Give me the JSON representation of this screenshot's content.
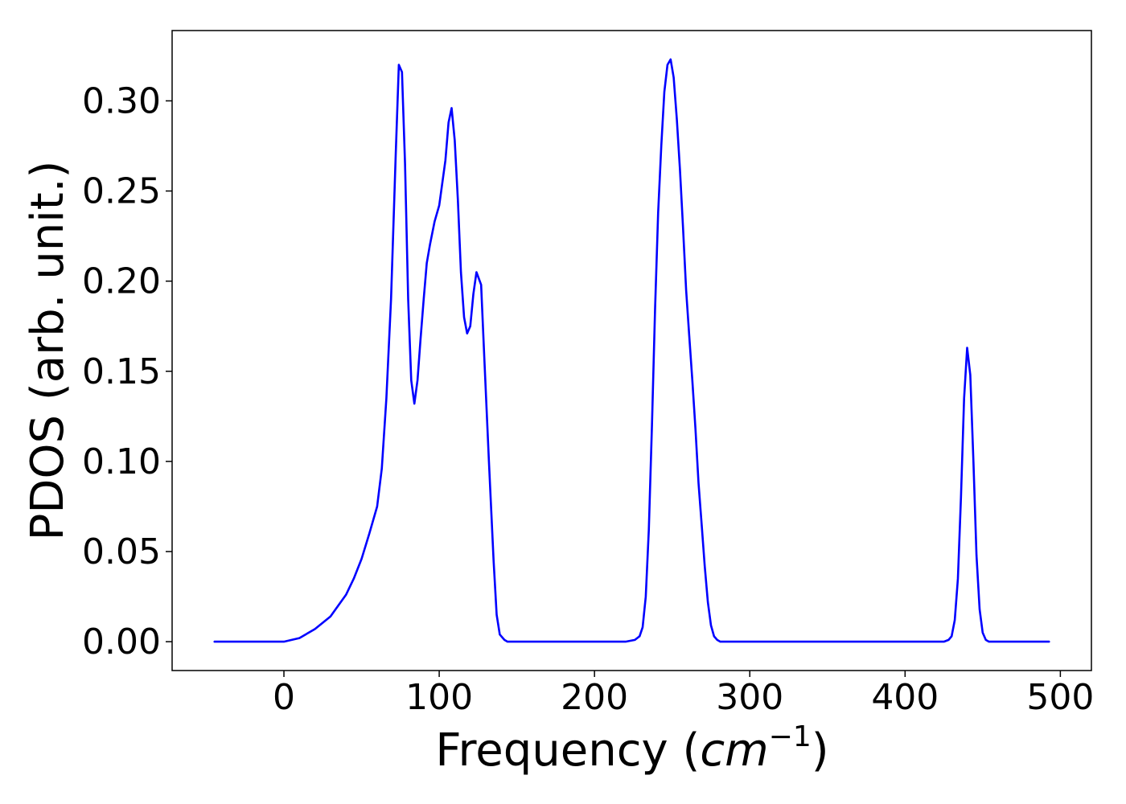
{
  "chart_data": {
    "type": "line",
    "title": "",
    "xlabel": "Frequency",
    "xlabel_unit_base": "cm",
    "xlabel_unit_exp": "−1",
    "ylabel": "PDOS (arb. unit.)",
    "xlim": [
      -72,
      520
    ],
    "ylim": [
      -0.016,
      0.339
    ],
    "xticks": [
      0,
      100,
      200,
      300,
      400,
      500
    ],
    "xtick_labels": [
      "0",
      "100",
      "200",
      "300",
      "400",
      "500"
    ],
    "yticks": [
      0.0,
      0.05,
      0.1,
      0.15,
      0.2,
      0.25,
      0.3
    ],
    "ytick_labels": [
      "0.00",
      "0.05",
      "0.10",
      "0.15",
      "0.20",
      "0.25",
      "0.30"
    ],
    "grid": false,
    "series": [
      {
        "color": "#0000ff",
        "x": [
          -45,
          0,
          10,
          20,
          30,
          40,
          45,
          50,
          55,
          60,
          63,
          66,
          69,
          72,
          74,
          76,
          78,
          80,
          82,
          84,
          86,
          88,
          90,
          92,
          94,
          97,
          100,
          104,
          106,
          108,
          110,
          112,
          114,
          116,
          118,
          120,
          122,
          124,
          127,
          129,
          132,
          135,
          137,
          139,
          142,
          144,
          146,
          148,
          150,
          153,
          156,
          160,
          170,
          180,
          200,
          220,
          226,
          229,
          231,
          233,
          235,
          237,
          239,
          241,
          243,
          245,
          247,
          249,
          251,
          253,
          255,
          257,
          259,
          261,
          263,
          265,
          267,
          269,
          271,
          273,
          275,
          277,
          279,
          281,
          283,
          285,
          287,
          289,
          291,
          293,
          296,
          300,
          320,
          360,
          400,
          425,
          428,
          430,
          432,
          434,
          436,
          438,
          440,
          442,
          444,
          446,
          448,
          450,
          452,
          454,
          456,
          458,
          460,
          463,
          470,
          493
        ],
        "y": [
          0.0,
          0.0,
          0.002,
          0.007,
          0.014,
          0.026,
          0.035,
          0.046,
          0.06,
          0.075,
          0.096,
          0.135,
          0.19,
          0.27,
          0.32,
          0.316,
          0.265,
          0.19,
          0.145,
          0.132,
          0.145,
          0.168,
          0.19,
          0.21,
          0.22,
          0.233,
          0.242,
          0.267,
          0.288,
          0.296,
          0.278,
          0.245,
          0.205,
          0.18,
          0.171,
          0.175,
          0.193,
          0.205,
          0.198,
          0.158,
          0.1,
          0.045,
          0.015,
          0.004,
          0.001,
          0.0,
          0.0,
          0.0,
          0.0,
          0.0,
          0.0,
          0.0,
          0.0,
          0.0,
          0.0,
          0.0,
          0.001,
          0.003,
          0.008,
          0.025,
          0.062,
          0.12,
          0.185,
          0.238,
          0.275,
          0.305,
          0.32,
          0.323,
          0.313,
          0.29,
          0.262,
          0.23,
          0.195,
          0.17,
          0.145,
          0.118,
          0.088,
          0.065,
          0.042,
          0.022,
          0.009,
          0.003,
          0.001,
          0.0,
          0.0,
          0.0,
          0.0,
          0.0,
          0.0,
          0.0,
          0.0,
          0.0,
          0.0,
          0.0,
          0.0,
          0.0,
          0.001,
          0.003,
          0.012,
          0.035,
          0.08,
          0.135,
          0.163,
          0.148,
          0.1,
          0.048,
          0.018,
          0.005,
          0.001,
          0.0,
          0.0,
          0.0,
          0.0,
          0.0,
          0.0,
          0.0
        ]
      }
    ]
  }
}
